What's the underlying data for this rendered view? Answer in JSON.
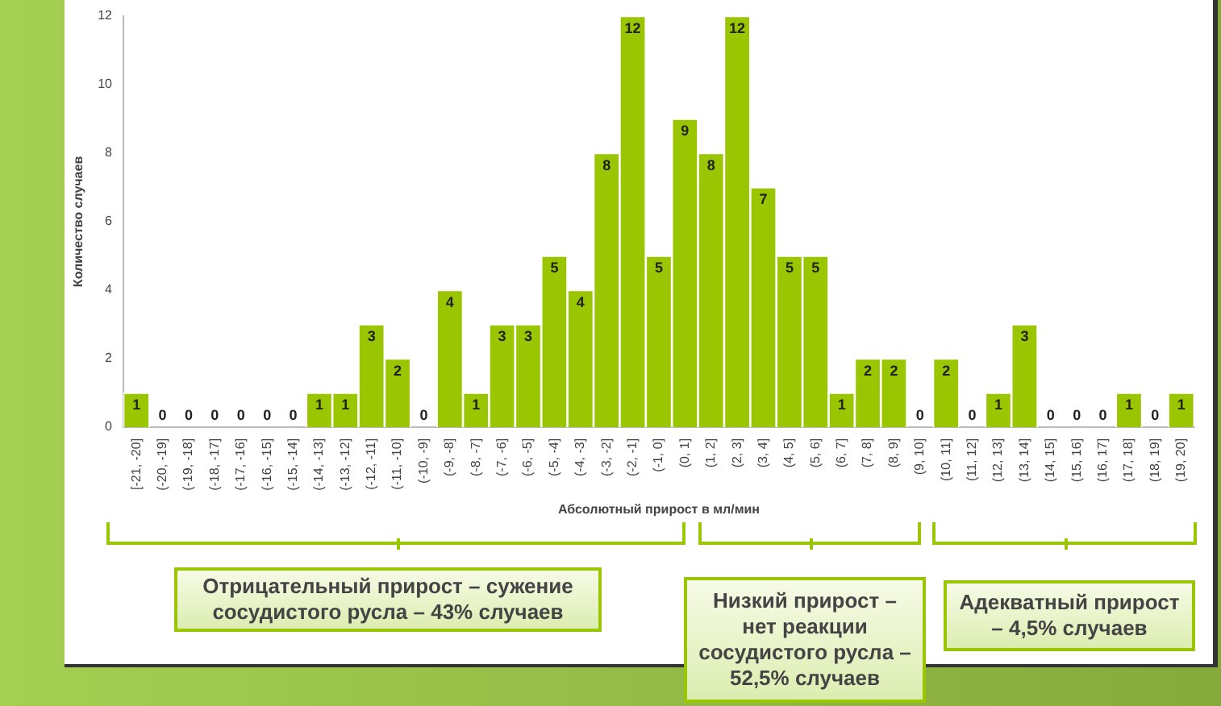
{
  "chart_data": {
    "type": "bar",
    "xlabel": "Абсолютный прирост в мл/мин",
    "ylabel": "Количество случаев",
    "categories": [
      "[-21, -20]",
      "(-20, -19]",
      "(-19, -18]",
      "(-18, -17]",
      "(-17, -16]",
      "(-16, -15]",
      "(-15, -14]",
      "(-14, -13]",
      "(-13, -12]",
      "(-12, -11]",
      "(-11, -10]",
      "(-10, -9]",
      "(-9, -8]",
      "(-8, -7]",
      "(-7, -6]",
      "(-6, -5]",
      "(-5, -4]",
      "(-4, -3]",
      "(-3, -2]",
      "(-2, -1]",
      "(-1, 0]",
      "(0, 1]",
      "(1, 2]",
      "(2, 3]",
      "(3, 4]",
      "(4, 5]",
      "(5, 6]",
      "(6, 7]",
      "(7, 8]",
      "(8, 9]",
      "(9, 10]",
      "(10, 11]",
      "(11, 12]",
      "(12, 13]",
      "(13, 14]",
      "(14, 15]",
      "(15, 16]",
      "(16, 17]",
      "(17, 18]",
      "(18, 19]",
      "(19, 20]"
    ],
    "values": [
      1,
      0,
      0,
      0,
      0,
      0,
      0,
      1,
      1,
      3,
      2,
      0,
      4,
      1,
      3,
      3,
      5,
      4,
      8,
      12,
      5,
      9,
      8,
      12,
      7,
      5,
      5,
      1,
      2,
      2,
      0,
      2,
      0,
      1,
      3,
      0,
      0,
      0,
      1,
      0,
      1
    ],
    "color": "#99c600",
    "ylim": [
      0,
      12
    ],
    "yticks": [
      0,
      2,
      4,
      6,
      8,
      10,
      12
    ],
    "grid": false,
    "legend": false,
    "data_labels": true,
    "annotations": [
      "Отрицательный прирост – сужение сосудистого русла – 43% случаев",
      "Низкий прирост – нет реакции сосудистого русла – 52,5% случаев",
      "Адекватный прирост – 4,5% случаев"
    ]
  }
}
